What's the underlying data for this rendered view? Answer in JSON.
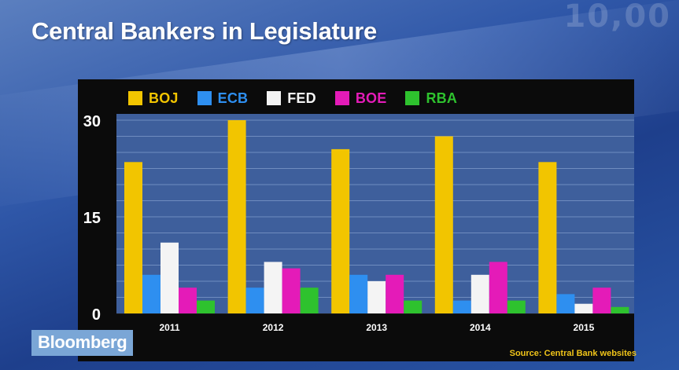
{
  "page": {
    "title": "Central Bankers in Legislature",
    "brand": "Bloomberg",
    "source": "Source: Central Bank websites",
    "background_digits": "10,00"
  },
  "chart_data": {
    "type": "bar",
    "title": "Central Bankers in Legislature",
    "xlabel": "",
    "ylabel": "",
    "categories": [
      "2011",
      "2012",
      "2013",
      "2014",
      "2015"
    ],
    "yticks": [
      0,
      15,
      30
    ],
    "ylim": [
      0,
      30
    ],
    "grid": true,
    "legend_position": "top",
    "series": [
      {
        "name": "BOJ",
        "color": "#f2c500",
        "values": [
          23.5,
          30,
          25.5,
          27.5,
          23.5
        ]
      },
      {
        "name": "ECB",
        "color": "#2e8ff0",
        "values": [
          6,
          4,
          6,
          2,
          3
        ]
      },
      {
        "name": "FED",
        "color": "#f4f4f4",
        "values": [
          11,
          8,
          5,
          6,
          1.5
        ]
      },
      {
        "name": "BOE",
        "color": "#e41bb8",
        "values": [
          4,
          7,
          6,
          8,
          4
        ]
      },
      {
        "name": "RBA",
        "color": "#2ec22e",
        "values": [
          2,
          4,
          2,
          2,
          1
        ]
      }
    ]
  }
}
